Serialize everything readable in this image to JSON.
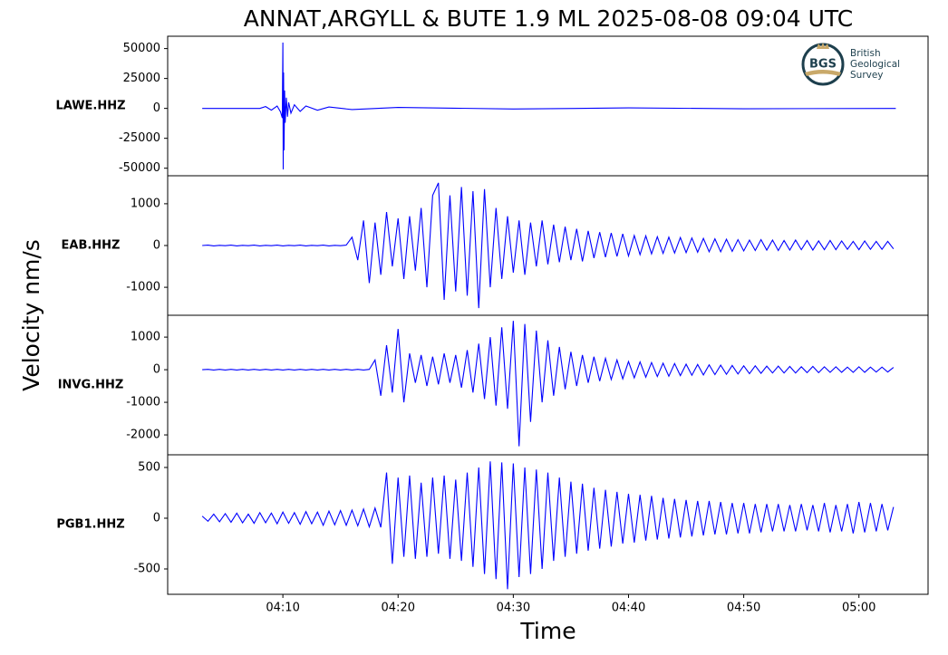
{
  "title": "ANNAT,ARGYLL & BUTE 1.9 ML   2025-08-08 09:04 UTC",
  "ylabel": "Velocity nm/s",
  "xlabel": "Time",
  "logo": {
    "mark": "BGS",
    "lines": [
      "British",
      "Geological",
      "Survey"
    ]
  },
  "chart_data": [
    {
      "type": "line",
      "station": "LAWE.HHZ",
      "color": "#0000ff",
      "x": [
        3,
        8,
        8.5,
        9,
        9.5,
        9.8,
        9.95,
        10,
        10.03,
        10.06,
        10.1,
        10.15,
        10.2,
        10.3,
        10.4,
        10.5,
        10.7,
        11,
        11.5,
        12,
        13,
        14,
        16,
        20,
        30,
        40,
        50,
        63.2
      ],
      "values": [
        0,
        0,
        1500,
        -1500,
        2000,
        -3000,
        -8000,
        55000,
        -51000,
        30000,
        -35000,
        15000,
        -12000,
        9000,
        -7000,
        5000,
        -4000,
        3000,
        -2500,
        2000,
        -1500,
        1200,
        -1000,
        800,
        -500,
        400,
        -300,
        0
      ],
      "xlim": [
        0,
        66
      ],
      "ylim": [
        -56300,
        60300
      ],
      "yticks": [
        -50000,
        -25000,
        0,
        25000,
        50000
      ]
    },
    {
      "type": "line",
      "station": "EAB.HHZ",
      "color": "#0000ff",
      "x": [
        3,
        3.5,
        4,
        4.5,
        5,
        5.5,
        6,
        6.5,
        7,
        7.5,
        8,
        8.5,
        9,
        9.5,
        10,
        10.5,
        11,
        11.5,
        12,
        12.5,
        13,
        13.5,
        14,
        14.5,
        15,
        15.5,
        16,
        16.5,
        17,
        17.5,
        18,
        18.5,
        19,
        19.5,
        20,
        20.5,
        21,
        21.5,
        22,
        22.5,
        23,
        23.5,
        24,
        24.5,
        25,
        25.5,
        26,
        26.5,
        27,
        27.5,
        28,
        28.5,
        29,
        29.5,
        30,
        30.5,
        31,
        31.5,
        32,
        32.5,
        33,
        33.5,
        34,
        34.5,
        35,
        35.5,
        36,
        36.5,
        37,
        37.5,
        38,
        38.5,
        39,
        39.5,
        40,
        40.5,
        41,
        41.5,
        42,
        42.5,
        43,
        43.5,
        44,
        44.5,
        45,
        45.5,
        46,
        46.5,
        47,
        47.5,
        48,
        48.5,
        49,
        49.5,
        50,
        50.5,
        51,
        51.5,
        52,
        52.5,
        53,
        53.5,
        54,
        54.5,
        55,
        55.5,
        56,
        56.5,
        57,
        57.5,
        58,
        58.5,
        59,
        59.5,
        60,
        60.5,
        61,
        61.5,
        62,
        62.5,
        63
      ],
      "values": [
        0,
        10,
        -10,
        5,
        -5,
        10,
        -10,
        5,
        -5,
        10,
        -10,
        5,
        -5,
        10,
        -10,
        5,
        -5,
        10,
        -10,
        5,
        -5,
        10,
        -10,
        5,
        -5,
        10,
        200,
        -350,
        600,
        -900,
        550,
        -700,
        800,
        -500,
        650,
        -800,
        700,
        -600,
        900,
        -1000,
        1200,
        1500,
        -1300,
        1200,
        -1100,
        1400,
        -1200,
        1300,
        -1500,
        1350,
        -1000,
        900,
        -800,
        700,
        -650,
        600,
        -700,
        550,
        -500,
        600,
        -450,
        500,
        -400,
        450,
        -350,
        400,
        -380,
        350,
        -300,
        320,
        -280,
        300,
        -260,
        280,
        -250,
        240,
        -220,
        230,
        -200,
        210,
        -190,
        200,
        -180,
        190,
        -170,
        180,
        -160,
        170,
        -150,
        160,
        -150,
        150,
        -140,
        140,
        -130,
        130,
        -120,
        140,
        -110,
        130,
        -120,
        120,
        -110,
        130,
        -100,
        120,
        -110,
        110,
        -100,
        120,
        -100,
        110,
        -90,
        100,
        -100,
        110,
        -90,
        100,
        -90,
        100,
        -80
      ],
      "xlim": [
        0,
        66
      ],
      "ylim": [
        -1670,
        1670
      ],
      "yticks": [
        -1000,
        0,
        1000
      ]
    },
    {
      "type": "line",
      "station": "INVG.HHZ",
      "color": "#0000ff",
      "x": [
        3,
        3.5,
        4,
        4.5,
        5,
        5.5,
        6,
        6.5,
        7,
        7.5,
        8,
        8.5,
        9,
        9.5,
        10,
        10.5,
        11,
        11.5,
        12,
        12.5,
        13,
        13.5,
        14,
        14.5,
        15,
        15.5,
        16,
        16.5,
        17,
        17.5,
        18,
        18.5,
        19,
        19.5,
        20,
        20.5,
        21,
        21.5,
        22,
        22.5,
        23,
        23.5,
        24,
        24.5,
        25,
        25.5,
        26,
        26.5,
        27,
        27.5,
        28,
        28.5,
        29,
        29.5,
        30,
        30.5,
        31,
        31.5,
        32,
        32.5,
        33,
        33.5,
        34,
        34.5,
        35,
        35.5,
        36,
        36.5,
        37,
        37.5,
        38,
        38.5,
        39,
        39.5,
        40,
        40.5,
        41,
        41.5,
        42,
        42.5,
        43,
        43.5,
        44,
        44.5,
        45,
        45.5,
        46,
        46.5,
        47,
        47.5,
        48,
        48.5,
        49,
        49.5,
        50,
        50.5,
        51,
        51.5,
        52,
        52.5,
        53,
        53.5,
        54,
        54.5,
        55,
        55.5,
        56,
        56.5,
        57,
        57.5,
        58,
        58.5,
        59,
        59.5,
        60,
        60.5,
        61,
        61.5,
        62,
        62.5,
        63
      ],
      "values": [
        0,
        10,
        -10,
        10,
        -10,
        10,
        -10,
        10,
        -10,
        10,
        -10,
        10,
        -10,
        10,
        -10,
        10,
        -10,
        10,
        -10,
        10,
        -10,
        10,
        -10,
        10,
        -10,
        10,
        -10,
        10,
        -10,
        10,
        300,
        -800,
        750,
        -700,
        1250,
        -1000,
        500,
        -400,
        450,
        -500,
        400,
        -450,
        500,
        -400,
        450,
        -550,
        600,
        -700,
        800,
        -900,
        1000,
        -1100,
        1300,
        -1200,
        1500,
        -2350,
        1400,
        -1600,
        1200,
        -1000,
        900,
        -800,
        700,
        -600,
        550,
        -500,
        450,
        -400,
        400,
        -350,
        350,
        -300,
        300,
        -280,
        250,
        -250,
        240,
        -230,
        220,
        -210,
        200,
        -200,
        190,
        -180,
        170,
        -170,
        160,
        -160,
        150,
        -150,
        140,
        -140,
        130,
        -130,
        120,
        -120,
        120,
        -110,
        110,
        -100,
        110,
        -100,
        100,
        -100,
        90,
        -90,
        100,
        -90,
        90,
        -80,
        90,
        -80,
        80,
        -80,
        90,
        -80,
        80,
        -70,
        80,
        -70,
        70
      ],
      "xlim": [
        0,
        66
      ],
      "ylim": [
        -2610,
        1670
      ],
      "yticks": [
        -2000,
        -1000,
        0,
        1000
      ]
    },
    {
      "type": "line",
      "station": "PGB1.HHZ",
      "color": "#0000ff",
      "x": [
        3,
        3.5,
        4,
        4.5,
        5,
        5.5,
        6,
        6.5,
        7,
        7.5,
        8,
        8.5,
        9,
        9.5,
        10,
        10.5,
        11,
        11.5,
        12,
        12.5,
        13,
        13.5,
        14,
        14.5,
        15,
        15.5,
        16,
        16.5,
        17,
        17.5,
        18,
        18.5,
        19,
        19.5,
        20,
        20.5,
        21,
        21.5,
        22,
        22.5,
        23,
        23.5,
        24,
        24.5,
        25,
        25.5,
        26,
        26.5,
        27,
        27.5,
        28,
        28.5,
        29,
        29.5,
        30,
        30.5,
        31,
        31.5,
        32,
        32.5,
        33,
        33.5,
        34,
        34.5,
        35,
        35.5,
        36,
        36.5,
        37,
        37.5,
        38,
        38.5,
        39,
        39.5,
        40,
        40.5,
        41,
        41.5,
        42,
        42.5,
        43,
        43.5,
        44,
        44.5,
        45,
        45.5,
        46,
        46.5,
        47,
        47.5,
        48,
        48.5,
        49,
        49.5,
        50,
        50.5,
        51,
        51.5,
        52,
        52.5,
        53,
        53.5,
        54,
        54.5,
        55,
        55.5,
        56,
        56.5,
        57,
        57.5,
        58,
        58.5,
        59,
        59.5,
        60,
        60.5,
        61,
        61.5,
        62,
        62.5,
        63
      ],
      "values": [
        20,
        -30,
        40,
        -35,
        45,
        -40,
        50,
        -45,
        40,
        -50,
        55,
        -45,
        50,
        -55,
        60,
        -50,
        55,
        -60,
        65,
        -55,
        60,
        -70,
        70,
        -65,
        75,
        -70,
        80,
        -75,
        90,
        -85,
        100,
        -90,
        450,
        -450,
        400,
        -380,
        420,
        -400,
        350,
        -380,
        400,
        -350,
        420,
        -400,
        380,
        -420,
        450,
        -480,
        500,
        -550,
        560,
        -600,
        550,
        -700,
        540,
        -580,
        500,
        -550,
        480,
        -500,
        450,
        -420,
        400,
        -380,
        360,
        -350,
        340,
        -320,
        300,
        -300,
        280,
        -280,
        260,
        -250,
        240,
        -240,
        230,
        -220,
        220,
        -210,
        200,
        -200,
        190,
        -190,
        180,
        -180,
        170,
        -170,
        170,
        -160,
        160,
        -160,
        150,
        -150,
        150,
        -150,
        140,
        -140,
        140,
        -130,
        140,
        -130,
        130,
        -130,
        140,
        -120,
        130,
        -130,
        150,
        -140,
        130,
        -130,
        140,
        -150,
        160,
        -140,
        150,
        -130,
        140,
        -120,
        110
      ],
      "xlim": [
        0,
        66
      ],
      "ylim": [
        -750,
        625
      ],
      "yticks": [
        -500,
        0,
        500
      ],
      "xticks": [
        {
          "value": 10,
          "label": "04:10"
        },
        {
          "value": 20,
          "label": "04:20"
        },
        {
          "value": 30,
          "label": "04:30"
        },
        {
          "value": 40,
          "label": "04:40"
        },
        {
          "value": 50,
          "label": "04:50"
        },
        {
          "value": 60,
          "label": "05:00"
        }
      ]
    }
  ]
}
